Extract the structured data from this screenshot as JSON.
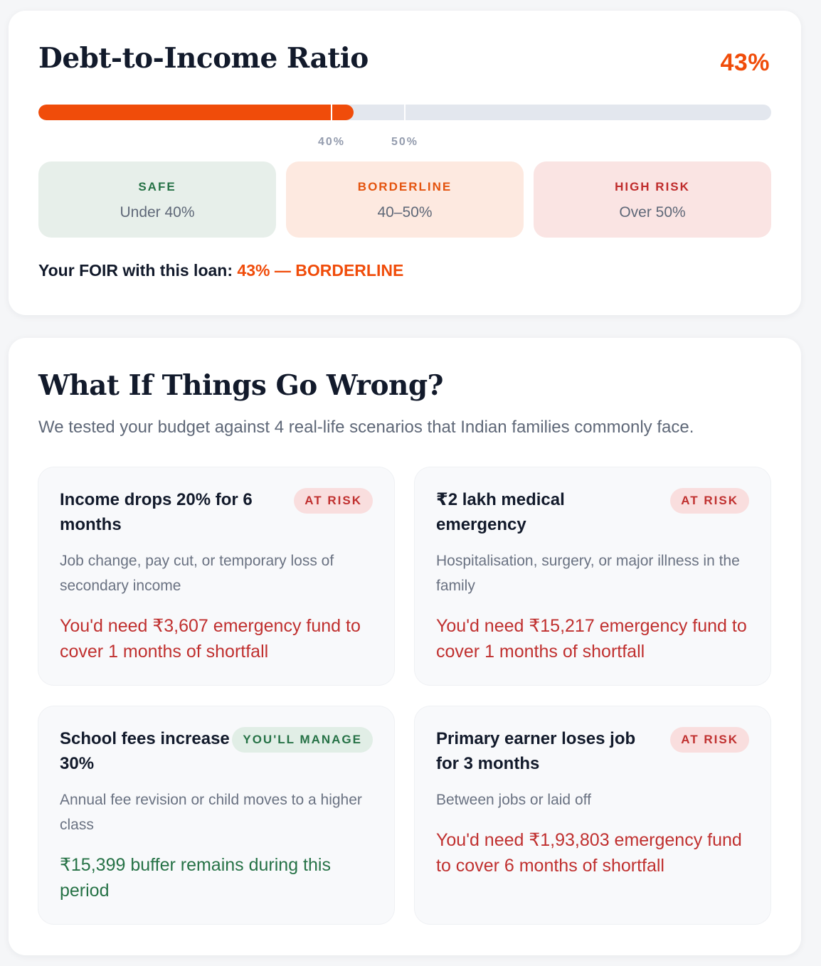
{
  "dti": {
    "title": "Debt-to-Income Ratio",
    "value_label": "43%",
    "value_percent": 43,
    "markers": [
      {
        "label": "40%",
        "percent": 40
      },
      {
        "label": "50%",
        "percent": 50
      }
    ],
    "zones": {
      "safe": {
        "title": "SAFE",
        "range": "Under 40%"
      },
      "borderline": {
        "title": "BORDERLINE",
        "range": "40–50%"
      },
      "high": {
        "title": "HIGH RISK",
        "range": "Over 50%"
      }
    },
    "foir_prefix": "Your FOIR with this loan: ",
    "foir_value": "43% — BORDERLINE",
    "colors": {
      "accent": "#f04c0a",
      "track": "#e3e7ee",
      "safe": "#267246",
      "risk": "#c0302f"
    }
  },
  "what_if": {
    "title": "What If Things Go Wrong?",
    "subtitle": "We tested your budget against 4 real-life scenarios that Indian families commonly face.",
    "scenarios": [
      {
        "title": "Income drops 20% for 6 months",
        "badge": "AT RISK",
        "description": "Job change, pay cut, or temporary loss of secondary income",
        "result": "You'd need ₹3,607 emergency fund to cover 1 months of shortfall"
      },
      {
        "title": "₹2 lakh medical emergency",
        "badge": "AT RISK",
        "description": "Hospitalisation, surgery, or major illness in the family",
        "result": "You'd need ₹15,217 emergency fund to cover 1 months of shortfall"
      },
      {
        "title": "School fees increase 30%",
        "badge": "YOU'LL MANAGE",
        "description": "Annual fee revision or child moves to a higher class",
        "result": "₹15,399 buffer remains during this period"
      },
      {
        "title": "Primary earner loses job for 3 months",
        "badge": "AT RISK",
        "description": "Between jobs or laid off",
        "result": "You'd need ₹1,93,803 emergency fund to cover 6 months of shortfall"
      }
    ]
  }
}
